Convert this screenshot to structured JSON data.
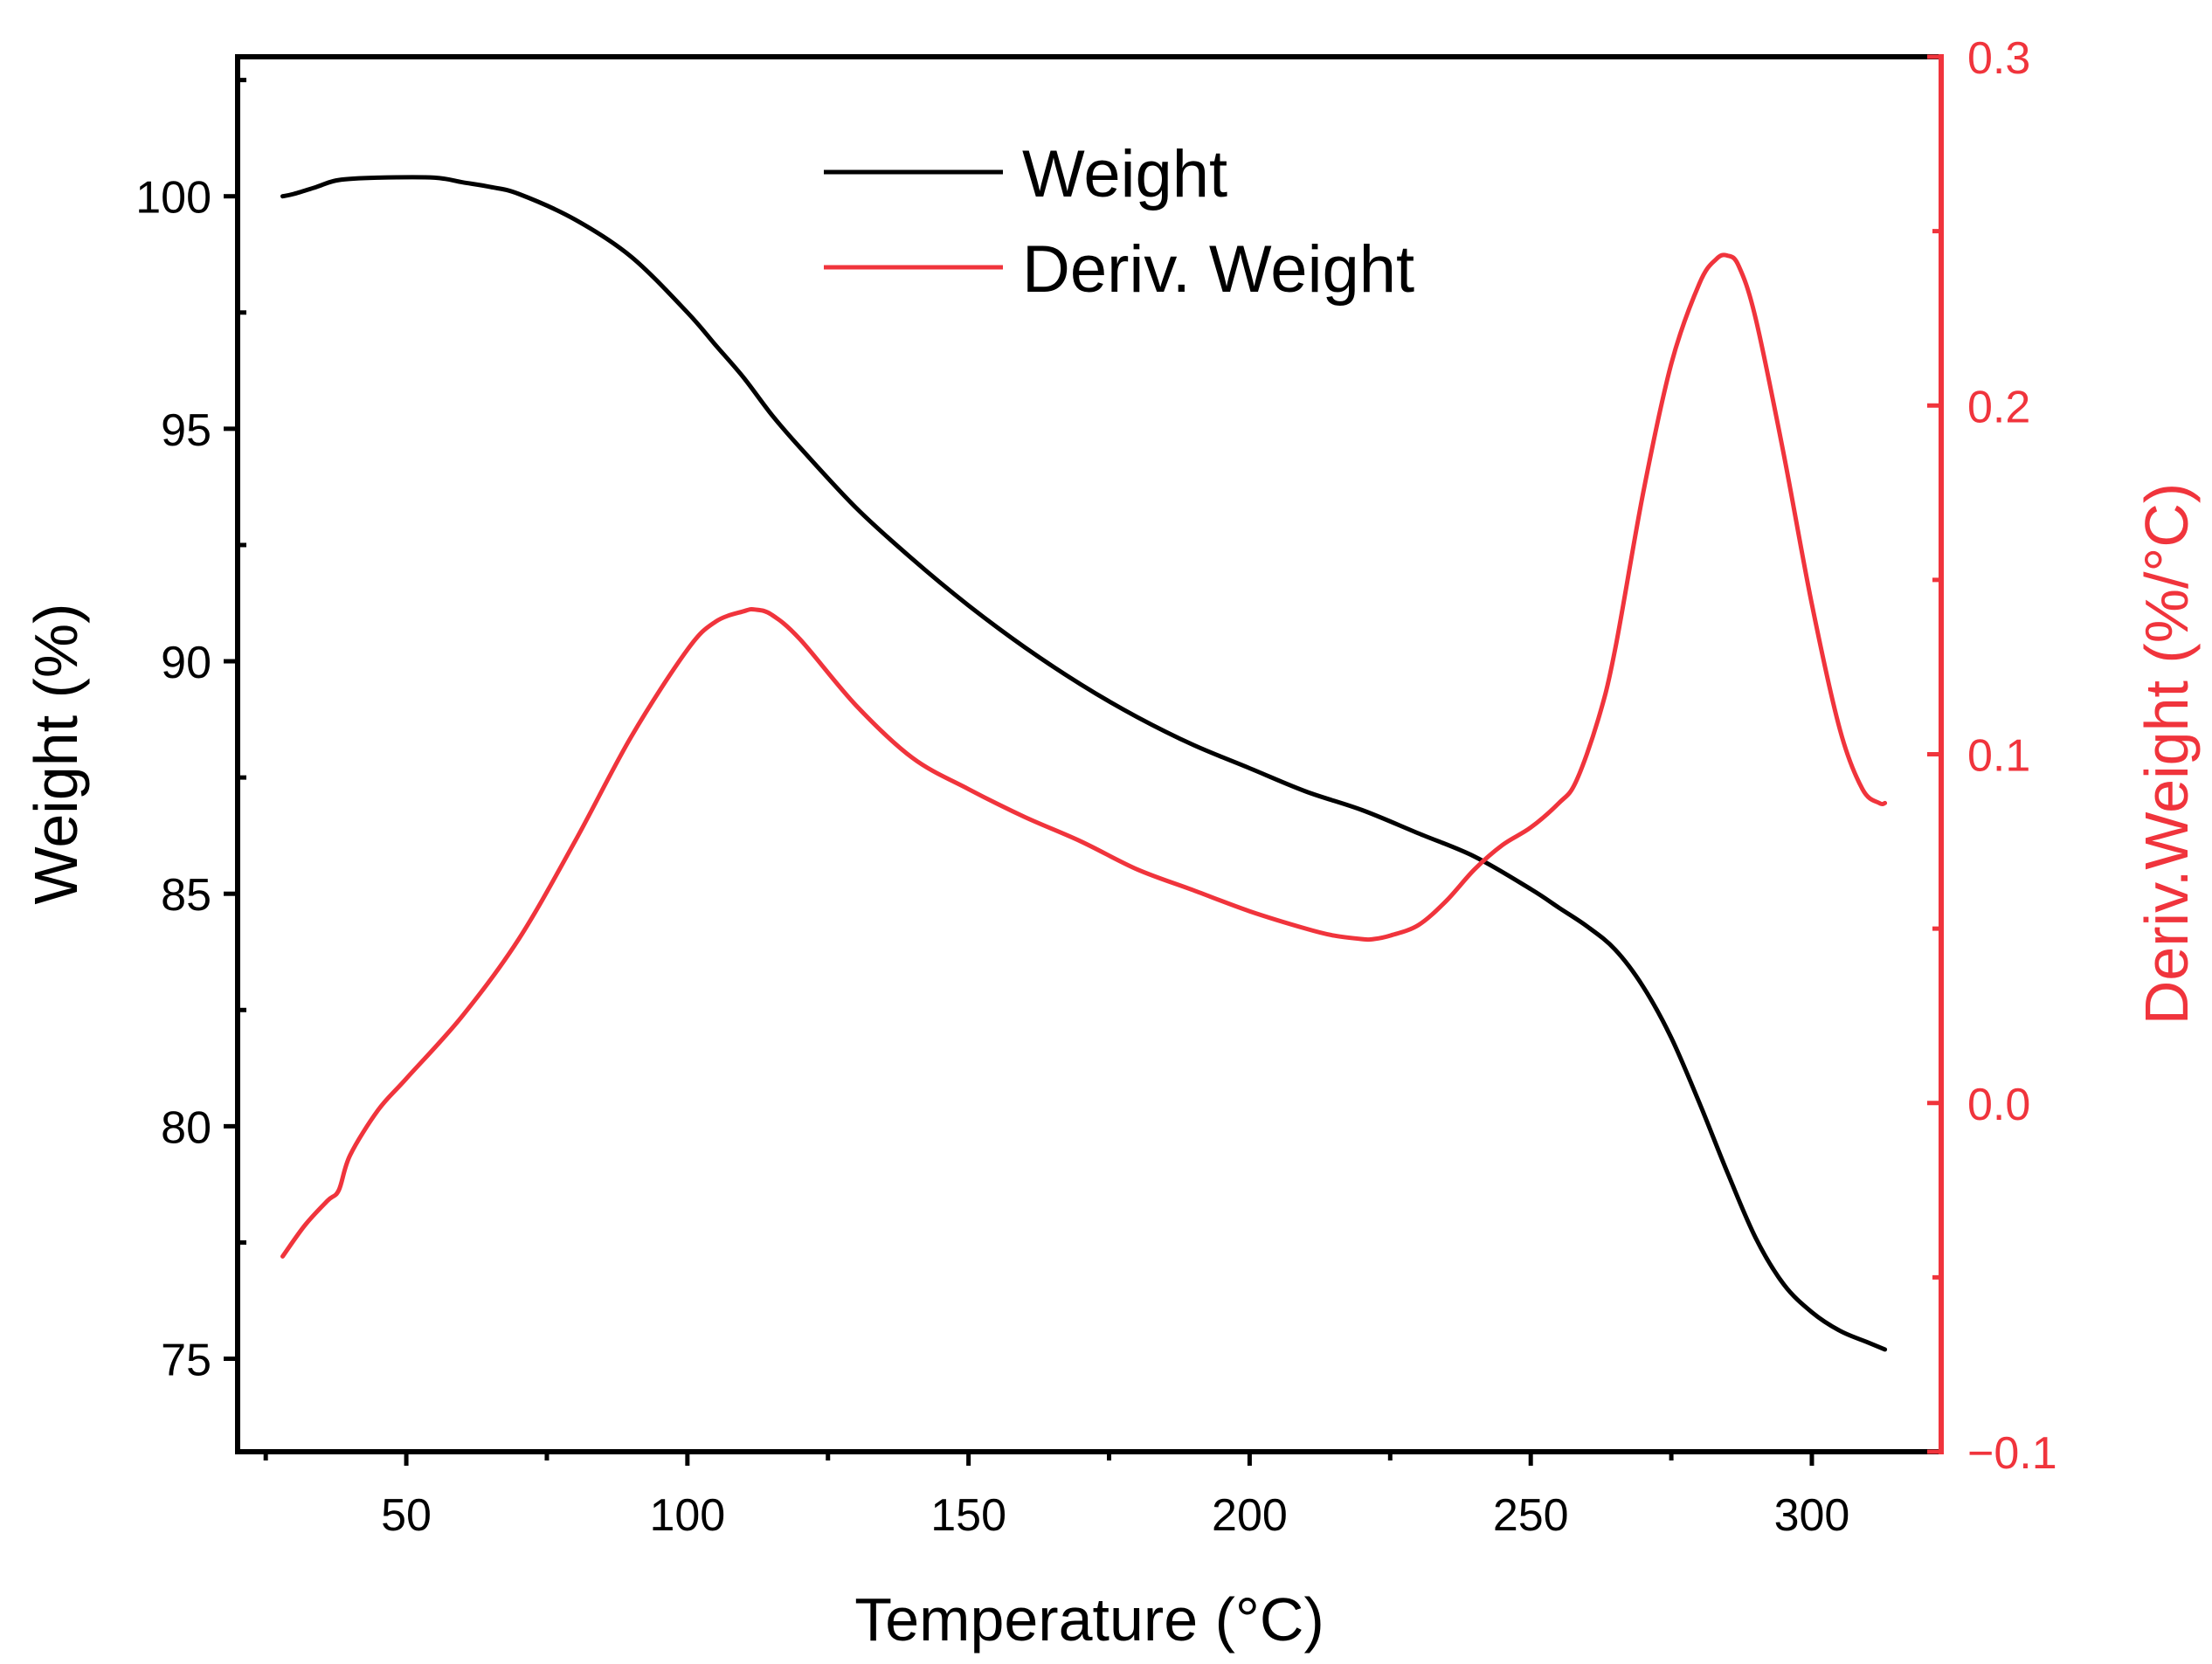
{
  "chart_data": {
    "type": "line",
    "title": "",
    "xlabel": "Temperature (°C)",
    "ylabel_left": "Weight (%)",
    "ylabel_right": "Deriv.Weight (%/°C)",
    "xlim": [
      20,
      323
    ],
    "ylim_left": [
      73,
      103
    ],
    "ylim_right": [
      -0.1,
      0.3
    ],
    "x_ticks": [
      50,
      100,
      150,
      200,
      250,
      300
    ],
    "x_tick_labels": [
      "50",
      "100",
      "150",
      "200",
      "250",
      "300"
    ],
    "y_left_ticks": [
      75,
      80,
      85,
      90,
      95,
      100
    ],
    "y_left_tick_labels": [
      "75",
      "80",
      "85",
      "90",
      "95",
      "100"
    ],
    "y_right_ticks": [
      -0.1,
      0.0,
      0.1,
      0.2,
      0.3
    ],
    "y_right_tick_labels": [
      "−0.1",
      "0.0",
      "0.1",
      "0.2",
      "0.3"
    ],
    "grid": false,
    "legend_position": "top-center",
    "colors": {
      "weight": "#000000",
      "deriv": "#f0343c",
      "right_axis": "#f0343c"
    },
    "series": [
      {
        "name": "Weight",
        "axis": "left",
        "color": "#000000",
        "x": [
          28,
          30,
          34,
          38,
          45,
          55,
          60,
          65,
          70,
          80,
          90,
          100,
          105,
          110,
          115,
          120,
          130,
          140,
          150,
          160,
          170,
          180,
          190,
          200,
          210,
          220,
          230,
          240,
          250,
          255,
          260,
          265,
          270,
          275,
          280,
          285,
          290,
          295,
          300,
          305,
          310,
          313
        ],
        "y": [
          100.0,
          100.05,
          100.2,
          100.35,
          100.4,
          100.4,
          100.3,
          100.2,
          100.05,
          99.5,
          98.7,
          97.5,
          96.8,
          96.1,
          95.3,
          94.6,
          93.3,
          92.2,
          91.2,
          90.3,
          89.5,
          88.8,
          88.2,
          87.7,
          87.2,
          86.8,
          86.3,
          85.8,
          85.1,
          84.7,
          84.3,
          83.8,
          83.0,
          81.9,
          80.5,
          79.0,
          77.6,
          76.6,
          76.0,
          75.6,
          75.35,
          75.2
        ]
      },
      {
        "name": "Deriv. Weight",
        "axis": "right",
        "color": "#f0343c",
        "x": [
          28,
          32,
          36,
          38,
          40,
          45,
          50,
          60,
          70,
          80,
          90,
          100,
          105,
          110,
          112,
          115,
          120,
          130,
          140,
          150,
          160,
          170,
          180,
          190,
          200,
          210,
          215,
          220,
          222,
          225,
          230,
          235,
          240,
          245,
          250,
          255,
          258,
          262,
          265,
          270,
          275,
          280,
          283,
          285,
          287,
          290,
          295,
          300,
          305,
          309,
          312,
          313
        ],
        "y": [
          -0.044,
          -0.035,
          -0.028,
          -0.025,
          -0.015,
          -0.002,
          0.007,
          0.025,
          0.047,
          0.075,
          0.105,
          0.13,
          0.138,
          0.141,
          0.1415,
          0.14,
          0.133,
          0.114,
          0.099,
          0.09,
          0.082,
          0.075,
          0.067,
          0.061,
          0.055,
          0.05,
          0.048,
          0.047,
          0.047,
          0.048,
          0.051,
          0.058,
          0.067,
          0.074,
          0.079,
          0.086,
          0.092,
          0.11,
          0.13,
          0.175,
          0.212,
          0.235,
          0.242,
          0.243,
          0.24,
          0.225,
          0.186,
          0.143,
          0.107,
          0.09,
          0.086,
          0.086
        ]
      }
    ]
  }
}
